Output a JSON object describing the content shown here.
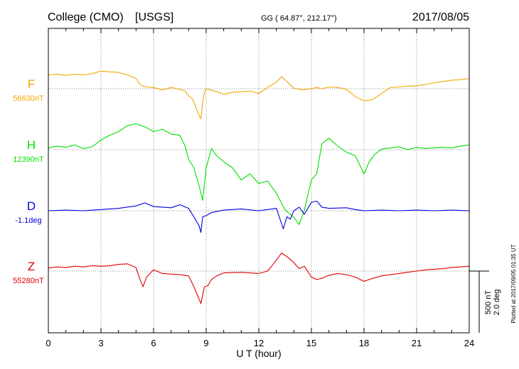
{
  "header": {
    "station": "College (CMO)",
    "agency": "[USGS]",
    "coords": "GG ( 64.87°, 212.17°)",
    "date": "2017/08/05"
  },
  "xaxis": {
    "label": "U T (hour)",
    "ticks": [
      "0",
      "3",
      "6",
      "9",
      "12",
      "15",
      "18",
      "21",
      "24"
    ]
  },
  "scale": {
    "nt": "500 nT",
    "deg": "2.0 deg"
  },
  "plotted": "Plotted at 2017/09/05 01:35 UT",
  "chart_data": {
    "type": "line",
    "title": "College (CMO) [USGS] 2017/08/05",
    "xlabel": "U T (hour)",
    "xlim": [
      0,
      24
    ],
    "xticks": [
      0,
      3,
      6,
      9,
      12,
      15,
      18,
      21,
      24
    ],
    "grid": true,
    "scale_bar": "500 nT / 2.0 deg",
    "series": [
      {
        "name": "F",
        "baseline_label": "56630nT",
        "color": "#f0a800",
        "unit": "nT",
        "x": [
          0,
          0.5,
          1,
          1.5,
          2,
          2.5,
          3,
          3.5,
          4,
          4.5,
          5,
          5.2,
          5.4,
          5.6,
          6,
          6.5,
          7,
          7.5,
          7.8,
          8,
          8.2,
          8.4,
          8.6,
          8.7,
          8.8,
          8.9,
          9,
          9.2,
          9.5,
          10,
          10.5,
          11,
          11.5,
          12,
          12.5,
          13,
          13.3,
          13.6,
          14,
          14.5,
          15,
          15.3,
          15.6,
          16,
          16.5,
          17,
          17.5,
          18,
          18.5,
          19,
          19.5,
          20,
          20.5,
          21,
          21.5,
          22,
          22.5,
          23,
          23.5,
          24
        ],
        "values": [
          115,
          120,
          110,
          120,
          115,
          125,
          145,
          140,
          135,
          115,
          85,
          40,
          20,
          15,
          10,
          -10,
          10,
          -5,
          -20,
          -60,
          -80,
          -150,
          -220,
          -250,
          -120,
          -30,
          0,
          -10,
          -20,
          -45,
          -30,
          -25,
          -20,
          -40,
          10,
          55,
          100,
          60,
          5,
          -10,
          0,
          10,
          0,
          15,
          10,
          -5,
          -65,
          -100,
          -90,
          -40,
          10,
          15,
          20,
          25,
          35,
          50,
          60,
          70,
          75,
          85
        ]
      },
      {
        "name": "H",
        "baseline_label": "12390nT",
        "color": "#00e000",
        "unit": "nT",
        "x": [
          0,
          0.5,
          1,
          1.5,
          2,
          2.5,
          3,
          3.5,
          4,
          4.5,
          5,
          5.5,
          6,
          6.5,
          7,
          7.5,
          7.8,
          8,
          8.3,
          8.6,
          8.8,
          9,
          9.3,
          9.6,
          10,
          10.5,
          11,
          11.5,
          12,
          12.5,
          13,
          13.5,
          14,
          14.3,
          14.6,
          15,
          15.3,
          15.6,
          16,
          16.5,
          17,
          17.5,
          18,
          18.3,
          18.6,
          19,
          19.5,
          20,
          20.5,
          21,
          21.5,
          22,
          22.5,
          23,
          23.5,
          24
        ],
        "values": [
          15,
          30,
          20,
          40,
          10,
          25,
          80,
          120,
          150,
          200,
          215,
          190,
          150,
          170,
          130,
          120,
          30,
          -80,
          -150,
          -300,
          -420,
          -150,
          10,
          -50,
          -100,
          -150,
          -250,
          -200,
          -280,
          -260,
          -360,
          -500,
          -560,
          -620,
          -500,
          -250,
          -200,
          50,
          95,
          30,
          -20,
          -50,
          -200,
          -100,
          -40,
          5,
          15,
          25,
          0,
          20,
          10,
          15,
          20,
          15,
          30,
          40
        ]
      },
      {
        "name": "D",
        "baseline_label": "-1.1deg",
        "color": "#0000e0",
        "unit": "deg",
        "x": [
          0,
          1,
          2,
          3,
          4,
          5,
          5.5,
          6,
          6.5,
          7,
          7.5,
          8,
          8.3,
          8.6,
          8.7,
          8.8,
          9,
          9.3,
          10,
          11,
          12,
          13,
          13.4,
          13.6,
          13.8,
          14,
          14.3,
          14.6,
          15,
          15.3,
          15.6,
          16,
          17,
          17.5,
          18,
          19,
          20,
          21,
          22,
          23,
          24
        ],
        "values": [
          0,
          0.02,
          0,
          0.04,
          0.08,
          0.16,
          0.26,
          0.14,
          0.12,
          0.1,
          0.2,
          0.08,
          -0.2,
          -0.5,
          -0.72,
          -0.2,
          -0.16,
          -0.06,
          0.02,
          0.06,
          0,
          0.08,
          -0.6,
          -0.2,
          -0.28,
          0,
          0.12,
          -0.12,
          0.28,
          0.32,
          0.12,
          0.08,
          0.1,
          0.04,
          0,
          0.02,
          0,
          0.02,
          0,
          0.02,
          0
        ]
      },
      {
        "name": "Z",
        "baseline_label": "55280nT",
        "color": "#e00000",
        "unit": "nT",
        "x": [
          0,
          0.5,
          1,
          1.5,
          2,
          2.5,
          3,
          3.5,
          4,
          4.5,
          5,
          5.2,
          5.4,
          5.6,
          6,
          6.5,
          7,
          7.5,
          8,
          8.3,
          8.5,
          8.7,
          8.9,
          9.1,
          9.3,
          9.6,
          10,
          11,
          12,
          12.5,
          13,
          13.3,
          13.6,
          14,
          14.3,
          14.6,
          15,
          15.3,
          15.6,
          16,
          16.5,
          17,
          17.5,
          18,
          18.5,
          19,
          19.5,
          20,
          20.5,
          21,
          21.5,
          22,
          22.5,
          23,
          23.5,
          24
        ],
        "values": [
          25,
          35,
          30,
          40,
          35,
          45,
          40,
          45,
          55,
          60,
          30,
          -60,
          -130,
          -50,
          10,
          -20,
          -25,
          -30,
          -40,
          -130,
          -200,
          -270,
          -130,
          -120,
          -70,
          -40,
          -15,
          -10,
          -20,
          0,
          90,
          150,
          120,
          70,
          20,
          40,
          -50,
          -70,
          -60,
          -35,
          -20,
          -30,
          -50,
          -85,
          -60,
          -40,
          -30,
          -20,
          -10,
          0,
          10,
          15,
          20,
          30,
          35,
          40
        ]
      }
    ]
  }
}
